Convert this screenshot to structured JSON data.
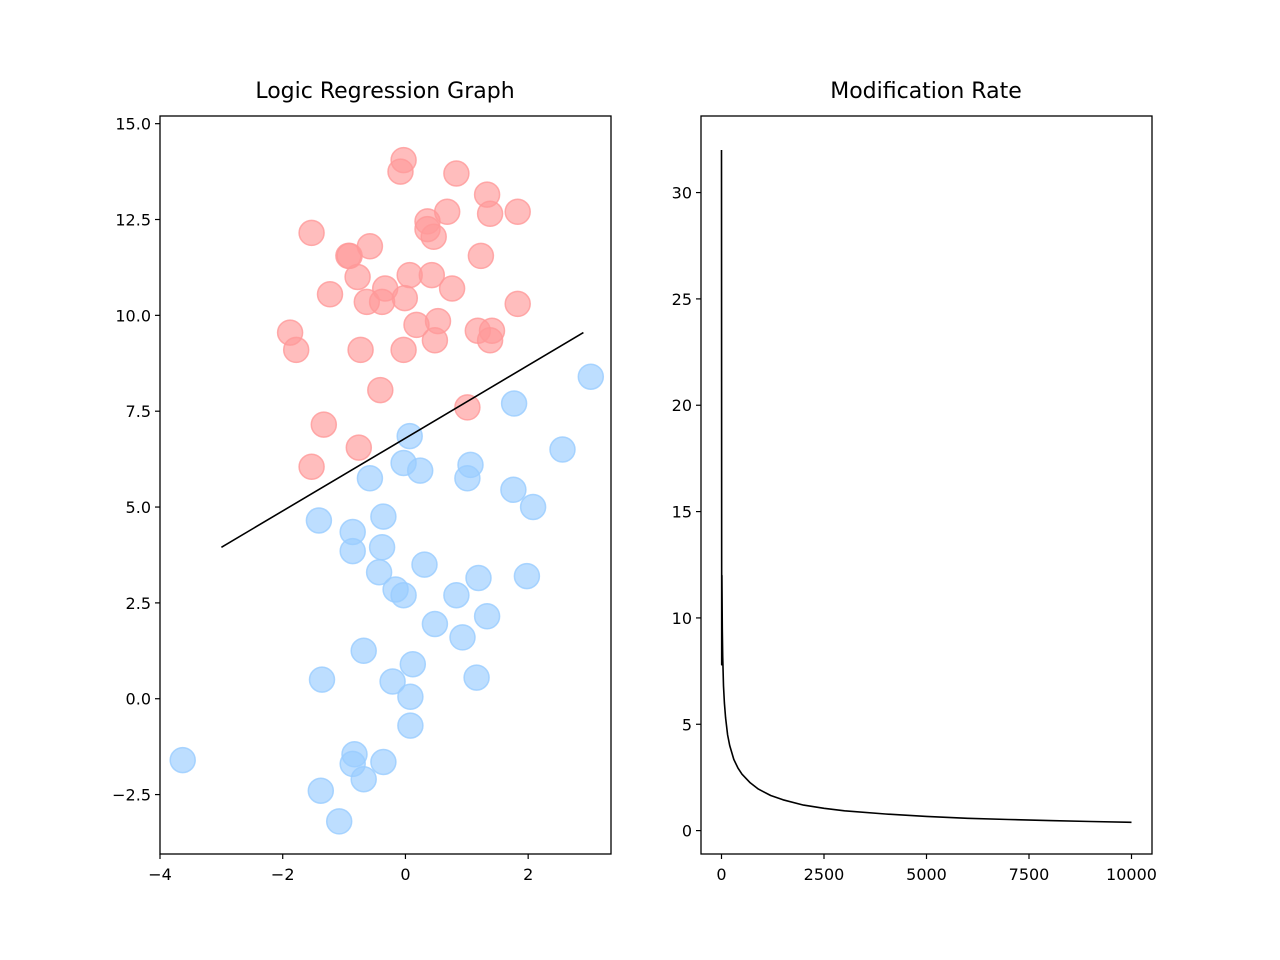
{
  "chart_data": [
    {
      "type": "scatter",
      "title": "Logic Regression Graph",
      "xlabel": "",
      "ylabel": "",
      "xlim": [
        -4.0,
        3.35
      ],
      "ylim": [
        -4.05,
        15.2
      ],
      "xticks": [
        -4,
        -2,
        0,
        2
      ],
      "xtick_labels": [
        "−4",
        "−2",
        "0",
        "2"
      ],
      "yticks": [
        -2.5,
        0.0,
        2.5,
        5.0,
        7.5,
        10.0,
        12.5,
        15.0
      ],
      "ytick_labels": [
        "−2.5",
        "0.0",
        "2.5",
        "5.0",
        "7.5",
        "10.0",
        "12.5",
        "15.0"
      ],
      "grid": false,
      "series": [
        {
          "color": "#ff9999",
          "points": [
            [
              -0.03,
              14.05
            ],
            [
              -0.08,
              13.75
            ],
            [
              0.83,
              13.7
            ],
            [
              1.33,
              13.15
            ],
            [
              0.68,
              12.7
            ],
            [
              1.38,
              12.65
            ],
            [
              1.83,
              12.7
            ],
            [
              0.36,
              12.45
            ],
            [
              0.36,
              12.25
            ],
            [
              0.46,
              12.05
            ],
            [
              -1.53,
              12.15
            ],
            [
              -0.58,
              11.8
            ],
            [
              -0.93,
              11.55
            ],
            [
              -0.91,
              11.55
            ],
            [
              1.23,
              11.55
            ],
            [
              -0.78,
              11.0
            ],
            [
              0.07,
              11.05
            ],
            [
              0.43,
              11.05
            ],
            [
              -0.33,
              10.7
            ],
            [
              0.76,
              10.7
            ],
            [
              -1.23,
              10.55
            ],
            [
              -0.01,
              10.45
            ],
            [
              -0.63,
              10.35
            ],
            [
              -0.38,
              10.35
            ],
            [
              1.83,
              10.3
            ],
            [
              0.53,
              9.85
            ],
            [
              0.18,
              9.75
            ],
            [
              -1.88,
              9.55
            ],
            [
              1.18,
              9.6
            ],
            [
              1.41,
              9.6
            ],
            [
              0.48,
              9.35
            ],
            [
              1.38,
              9.35
            ],
            [
              -1.78,
              9.1
            ],
            [
              -0.73,
              9.1
            ],
            [
              -0.03,
              9.1
            ],
            [
              -0.41,
              8.05
            ],
            [
              1.01,
              7.6
            ],
            [
              -1.33,
              7.15
            ],
            [
              -0.76,
              6.55
            ],
            [
              -1.53,
              6.05
            ]
          ]
        },
        {
          "color": "#99ccff",
          "points": [
            [
              3.02,
              8.4
            ],
            [
              1.77,
              7.7
            ],
            [
              0.07,
              6.85
            ],
            [
              2.56,
              6.5
            ],
            [
              1.06,
              6.1
            ],
            [
              -0.03,
              6.15
            ],
            [
              0.24,
              5.95
            ],
            [
              1.01,
              5.75
            ],
            [
              -0.58,
              5.75
            ],
            [
              1.76,
              5.45
            ],
            [
              2.08,
              5.0
            ],
            [
              -1.41,
              4.65
            ],
            [
              -0.36,
              4.75
            ],
            [
              -0.86,
              4.35
            ],
            [
              -0.38,
              3.95
            ],
            [
              -0.86,
              3.85
            ],
            [
              0.31,
              3.5
            ],
            [
              -0.43,
              3.3
            ],
            [
              1.19,
              3.15
            ],
            [
              1.98,
              3.2
            ],
            [
              -0.16,
              2.85
            ],
            [
              -0.03,
              2.7
            ],
            [
              0.83,
              2.7
            ],
            [
              1.33,
              2.15
            ],
            [
              0.48,
              1.95
            ],
            [
              0.93,
              1.6
            ],
            [
              -0.68,
              1.25
            ],
            [
              0.12,
              0.9
            ],
            [
              1.16,
              0.55
            ],
            [
              -1.36,
              0.5
            ],
            [
              -0.21,
              0.45
            ],
            [
              0.08,
              0.05
            ],
            [
              0.08,
              -0.7
            ],
            [
              -0.83,
              -1.45
            ],
            [
              -3.63,
              -1.6
            ],
            [
              -0.86,
              -1.7
            ],
            [
              -0.36,
              -1.65
            ],
            [
              -0.68,
              -2.1
            ],
            [
              -1.38,
              -2.4
            ],
            [
              -1.08,
              -3.2
            ]
          ]
        }
      ],
      "line": {
        "color": "#000000",
        "points": [
          [
            -3.0,
            3.95
          ],
          [
            2.9,
            9.55
          ]
        ]
      }
    },
    {
      "type": "line",
      "title": "Modification Rate",
      "xlabel": "",
      "ylabel": "",
      "xlim": [
        -500,
        10500
      ],
      "ylim": [
        -1.1,
        33.6
      ],
      "xticks": [
        0,
        2500,
        5000,
        7500,
        10000
      ],
      "xtick_labels": [
        "0",
        "2500",
        "5000",
        "7500",
        "10000"
      ],
      "yticks": [
        0,
        5,
        10,
        15,
        20,
        25,
        30
      ],
      "ytick_labels": [
        "0",
        "5",
        "10",
        "15",
        "20",
        "25",
        "30"
      ],
      "grid": false,
      "series": [
        {
          "color": "#000000",
          "x": [
            0,
            5,
            10,
            20,
            30,
            50,
            70,
            100,
            150,
            200,
            300,
            400,
            500,
            700,
            900,
            1200,
            1500,
            2000,
            2500,
            3000,
            4000,
            5000,
            6000,
            7000,
            8000,
            9000,
            10000
          ],
          "y": [
            32.0,
            7.8,
            12.0,
            9.5,
            8.2,
            6.8,
            6.0,
            5.3,
            4.5,
            4.0,
            3.35,
            2.95,
            2.65,
            2.25,
            1.95,
            1.65,
            1.45,
            1.2,
            1.05,
            0.93,
            0.78,
            0.67,
            0.58,
            0.52,
            0.47,
            0.43,
            0.39
          ]
        }
      ]
    }
  ]
}
